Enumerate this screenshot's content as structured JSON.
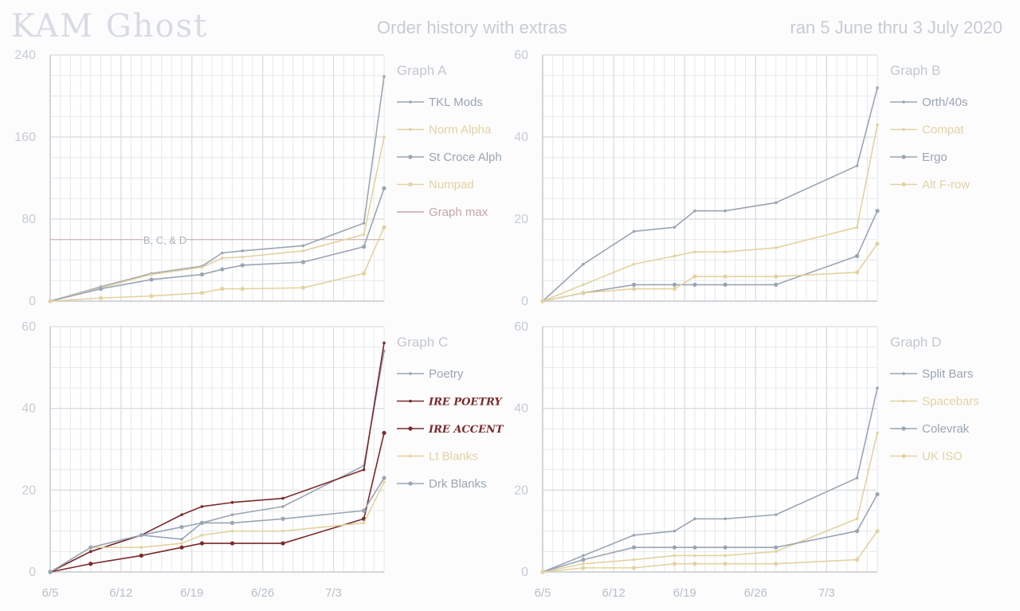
{
  "header": {
    "brand": "KAM Ghost",
    "subtitle": "Order history with extras",
    "date_range": "ran 5 June thru 3 July 2020"
  },
  "colors": {
    "slate": "#9aa5b4",
    "sand": "#e3d29f",
    "maroon": "#7a2a2a",
    "grid": "#e6e8ec",
    "gridMajor": "#d8dbe0",
    "axis": "#c8ccd2",
    "maxline": "#c9a7a7"
  },
  "chart_data": [
    {
      "id": "graph-a",
      "type": "line",
      "title": "Graph A",
      "x": [
        0,
        5,
        10,
        15,
        17,
        19,
        25,
        31,
        33
      ],
      "x_tick_labels": [
        "6/5",
        "6/12",
        "6/19",
        "6/26",
        "7/3"
      ],
      "x_tick_values": [
        0,
        7,
        14,
        21,
        28
      ],
      "xlim": [
        0,
        33
      ],
      "ylim": [
        0,
        240
      ],
      "y_ticks": [
        0,
        80,
        160,
        240
      ],
      "show_x_labels": false,
      "annotation": {
        "text": "B, C, & D",
        "y": 60
      },
      "series": [
        {
          "name": "TKL Mods",
          "color_key": "slate",
          "marker": "small",
          "values": [
            0,
            14,
            27,
            34,
            47,
            49,
            54,
            76,
            219
          ]
        },
        {
          "name": "Norm Alpha",
          "color_key": "sand",
          "marker": "small",
          "values": [
            0,
            13,
            26,
            33,
            42,
            43,
            49,
            65,
            160
          ]
        },
        {
          "name": "St Croce Alph",
          "color_key": "slate",
          "marker": "big",
          "values": [
            0,
            12,
            21,
            26,
            31,
            35,
            38,
            53,
            110
          ]
        },
        {
          "name": "Numpad",
          "color_key": "sand",
          "marker": "big",
          "values": [
            0,
            3,
            5,
            8,
            12,
            12,
            13,
            27,
            72
          ]
        }
      ],
      "legend_extra": [
        {
          "name": "Graph max",
          "color_key": "maxline"
        }
      ]
    },
    {
      "id": "graph-b",
      "type": "line",
      "title": "Graph B",
      "x": [
        0,
        4,
        9,
        13,
        15,
        18,
        23,
        31,
        33
      ],
      "x_tick_labels": [
        "6/5",
        "6/12",
        "6/19",
        "6/26",
        "7/3"
      ],
      "x_tick_values": [
        0,
        7,
        14,
        21,
        28
      ],
      "xlim": [
        0,
        33
      ],
      "ylim": [
        0,
        60
      ],
      "y_ticks": [
        0,
        20,
        40,
        60
      ],
      "show_x_labels": false,
      "series": [
        {
          "name": "Orth/40s",
          "color_key": "slate",
          "marker": "small",
          "values": [
            0,
            9,
            17,
            18,
            22,
            22,
            24,
            33,
            52
          ]
        },
        {
          "name": "Compat",
          "color_key": "sand",
          "marker": "small",
          "values": [
            0,
            4,
            9,
            11,
            12,
            12,
            13,
            18,
            43
          ]
        },
        {
          "name": "Ergo",
          "color_key": "slate",
          "marker": "big",
          "values": [
            0,
            2,
            4,
            4,
            4,
            4,
            4,
            11,
            22
          ]
        },
        {
          "name": "Alt F-row",
          "color_key": "sand",
          "marker": "big",
          "values": [
            0,
            2,
            3,
            3,
            6,
            6,
            6,
            7,
            14
          ]
        }
      ]
    },
    {
      "id": "graph-c",
      "type": "line",
      "title": "Graph C",
      "x": [
        0,
        4,
        9,
        13,
        15,
        18,
        23,
        31,
        33
      ],
      "x_tick_labels": [
        "6/5",
        "6/12",
        "6/19",
        "6/26",
        "7/3"
      ],
      "x_tick_values": [
        0,
        7,
        14,
        21,
        28
      ],
      "xlim": [
        0,
        33
      ],
      "ylim": [
        0,
        60
      ],
      "y_ticks": [
        0,
        20,
        40,
        60
      ],
      "show_x_labels": true,
      "series": [
        {
          "name": "Poetry",
          "color_key": "slate",
          "marker": "small",
          "values": [
            0,
            5,
            9,
            8,
            12,
            14,
            16,
            26,
            54
          ],
          "x": [
            0,
            4,
            9,
            13,
            15,
            18,
            23,
            31,
            33
          ]
        },
        {
          "name": "IRE POETRY",
          "color_key": "maroon",
          "marker": "small",
          "fancy": true,
          "values": [
            0,
            5,
            9,
            14,
            16,
            17,
            18,
            25,
            56
          ],
          "x": [
            0,
            4,
            9,
            13,
            15,
            18,
            23,
            31,
            33
          ]
        },
        {
          "name": "IRE ACCENT",
          "color_key": "maroon",
          "marker": "big",
          "fancy": true,
          "values": [
            0,
            2,
            4,
            6,
            7,
            7,
            7,
            13,
            34
          ],
          "x": [
            0,
            4,
            9,
            13,
            15,
            18,
            23,
            31,
            33
          ]
        },
        {
          "name": "Lt Blanks",
          "color_key": "sand",
          "marker": "small",
          "values": [
            0,
            6,
            6,
            7,
            9,
            10,
            10,
            12,
            22
          ],
          "x": [
            0,
            4,
            9,
            13,
            15,
            18,
            23,
            31,
            33
          ]
        },
        {
          "name": "Drk Blanks",
          "color_key": "slate",
          "marker": "big",
          "values": [
            0,
            6,
            9,
            11,
            12,
            12,
            13,
            15,
            23
          ],
          "x": [
            0,
            4,
            9,
            13,
            15,
            18,
            23,
            31,
            33
          ]
        }
      ]
    },
    {
      "id": "graph-d",
      "type": "line",
      "title": "Graph D",
      "x": [
        0,
        4,
        9,
        13,
        15,
        18,
        23,
        31,
        33
      ],
      "x_tick_labels": [
        "6/5",
        "6/12",
        "6/19",
        "6/26",
        "7/3"
      ],
      "x_tick_values": [
        0,
        7,
        14,
        21,
        28
      ],
      "xlim": [
        0,
        33
      ],
      "ylim": [
        0,
        60
      ],
      "y_ticks": [
        0,
        20,
        40,
        60
      ],
      "show_x_labels": true,
      "series": [
        {
          "name": "Split Bars",
          "color_key": "slate",
          "marker": "small",
          "values": [
            0,
            4,
            9,
            10,
            13,
            13,
            14,
            23,
            45
          ]
        },
        {
          "name": "Spacebars",
          "color_key": "sand",
          "marker": "small",
          "values": [
            0,
            2,
            3,
            4,
            4,
            4,
            5,
            13,
            34
          ]
        },
        {
          "name": "Colevrak",
          "color_key": "slate",
          "marker": "big",
          "values": [
            0,
            3,
            6,
            6,
            6,
            6,
            6,
            10,
            19
          ]
        },
        {
          "name": "UK ISO",
          "color_key": "sand",
          "marker": "big",
          "values": [
            0,
            1,
            1,
            2,
            2,
            2,
            2,
            3,
            10
          ]
        }
      ]
    }
  ]
}
